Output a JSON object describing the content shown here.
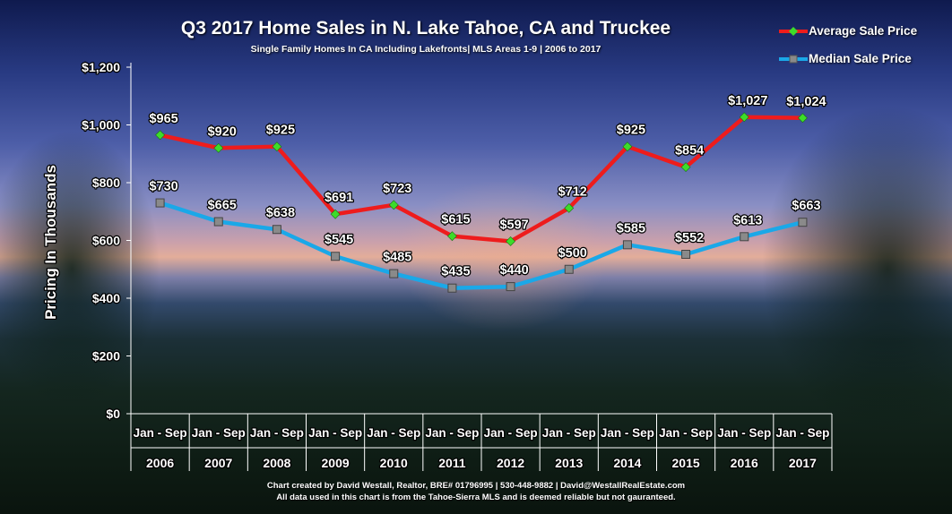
{
  "chart_data": {
    "type": "line",
    "title": "Q3 2017 Home Sales in N. Lake Tahoe, CA and Truckee",
    "subtitle": "Single Family Homes In CA Including Lakefronts| MLS Areas 1-9 | 2006 to 2017",
    "ylabel": "Pricing In Thousands",
    "xlabel": "",
    "ylim": [
      0,
      1200
    ],
    "yticks": [
      0,
      200,
      400,
      600,
      800,
      1000,
      1200
    ],
    "ytick_labels": [
      "$0",
      "$200",
      "$400",
      "$600",
      "$800",
      "$1,000",
      "$1,200"
    ],
    "categories": [
      "2006",
      "2007",
      "2008",
      "2009",
      "2010",
      "2011",
      "2012",
      "2013",
      "2014",
      "2015",
      "2016",
      "2017"
    ],
    "category_sublabel": "Jan - Sep",
    "grid": false,
    "legend_position": "top-right",
    "series": [
      {
        "name": "Average Sale Price",
        "color": "#ee1c1c",
        "marker_color": "#3ddc2a",
        "marker": "diamond",
        "values": [
          965,
          920,
          925,
          691,
          723,
          615,
          597,
          712,
          925,
          854,
          1027,
          1024
        ],
        "labels": [
          "$965",
          "$920",
          "$925",
          "$691",
          "$723",
          "$615",
          "$597",
          "$712",
          "$925",
          "$854",
          "$1,027",
          "$1,024"
        ]
      },
      {
        "name": "Median Sale Price",
        "color": "#1aa8e8",
        "marker_color": "#8a8a8a",
        "marker": "square",
        "values": [
          730,
          665,
          638,
          545,
          485,
          435,
          440,
          500,
          585,
          552,
          613,
          663
        ],
        "labels": [
          "$730",
          "$665",
          "$638",
          "$545",
          "$485",
          "$435",
          "$440",
          "$500",
          "$585",
          "$552",
          "$613",
          "$663"
        ]
      }
    ]
  },
  "footer": {
    "line1": "Chart created by David Westall, Realtor, BRE# 01796995 | 530-448-9882 | David@WestallRealEstate.com",
    "line2": "All data used in this chart is from the Tahoe-Sierra MLS and is deemed reliable but  not gauranteed."
  }
}
